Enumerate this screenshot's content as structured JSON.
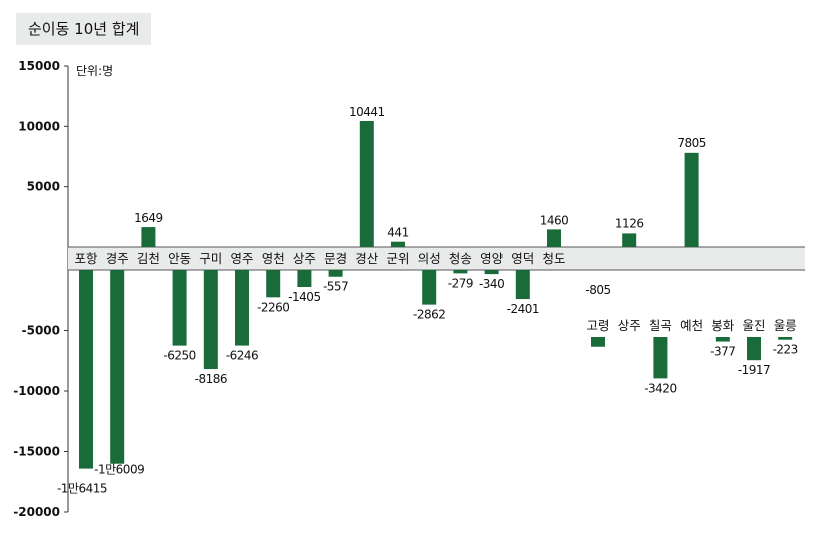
{
  "chart_data": {
    "type": "bar",
    "title": "순이동 10년 합계",
    "unit": "단위:명",
    "ylim": [
      -20000,
      15000
    ],
    "yticks": [
      15000,
      10000,
      5000,
      -5000,
      -10000,
      -15000,
      -20000
    ],
    "ytick_labels": [
      "15000",
      "10000",
      "5000",
      "-5000",
      "-10000",
      "-15000",
      "-20000"
    ],
    "bar_color": "#1a6b3a",
    "band_color": "#e9eaea",
    "groups": [
      {
        "name": "row1",
        "categories": [
          "포항",
          "경주",
          "김천",
          "안동",
          "구미",
          "영주",
          "영천",
          "상주",
          "문경",
          "경산",
          "군위",
          "의성",
          "청송",
          "영양",
          "영덕",
          "청도"
        ],
        "values": [
          -16415,
          -16009,
          1649,
          -6250,
          -8186,
          -6246,
          -2260,
          -1405,
          -557,
          10441,
          441,
          -2862,
          -279,
          -340,
          -2401,
          1460
        ],
        "value_labels": [
          "-1만6415",
          "-1만6009",
          "1649",
          "-6250",
          "-8186",
          "-6246",
          "-2260",
          "-1405",
          "-557",
          "10441",
          "441",
          "-2862",
          "-279",
          "-340",
          "-2401",
          "1460"
        ]
      },
      {
        "name": "row2",
        "categories": [
          "고령",
          "상주",
          "칠곡",
          "예천",
          "봉화",
          "울진",
          "울릉"
        ],
        "values": [
          -805,
          1126,
          -3420,
          7805,
          -377,
          -1917,
          -223
        ],
        "value_labels": [
          "-805",
          "1126",
          "-3420",
          "7805",
          "-377",
          "-1917",
          "-223"
        ]
      }
    ]
  }
}
